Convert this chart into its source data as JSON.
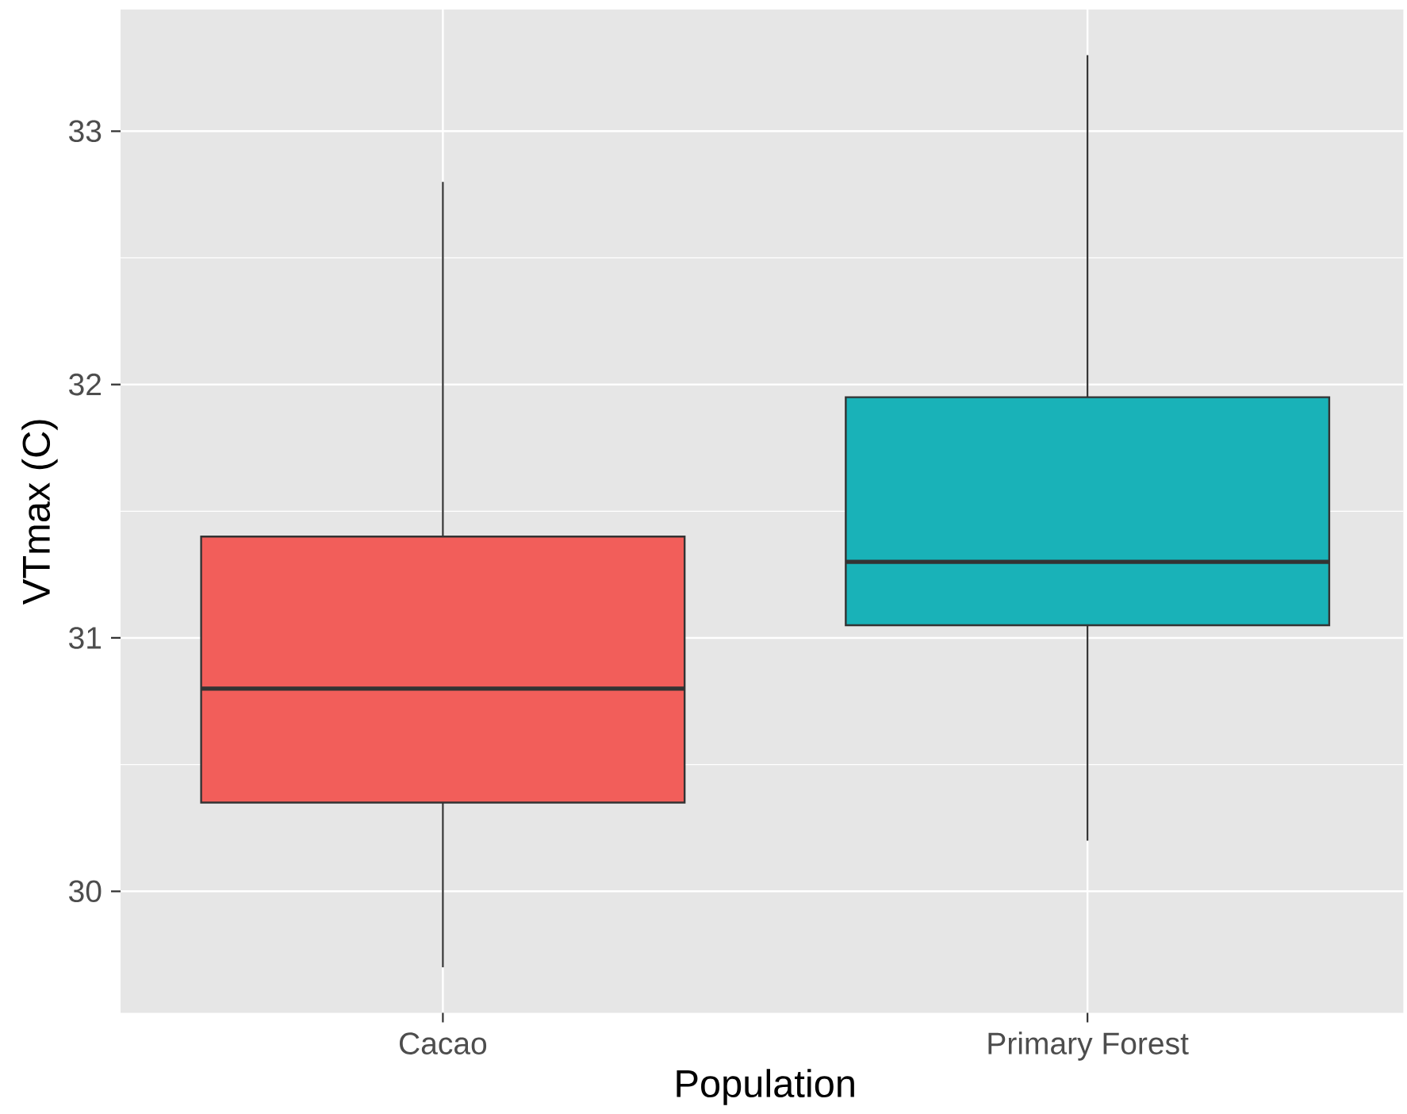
{
  "chart_data": {
    "type": "box",
    "xlabel": "Population",
    "ylabel": "VTmax (C)",
    "categories": [
      "Cacao",
      "Primary Forest"
    ],
    "boxes": [
      {
        "low": 29.7,
        "q1": 30.35,
        "median": 30.8,
        "q3": 31.4,
        "high": 32.8
      },
      {
        "low": 30.2,
        "q1": 31.05,
        "median": 31.3,
        "q3": 31.95,
        "high": 33.3
      }
    ],
    "colors": [
      "#f25e5a",
      "#19b2b8"
    ],
    "ylim": [
      29.52,
      33.48
    ],
    "yticks": [
      30,
      31,
      32,
      33
    ],
    "grid": true
  }
}
